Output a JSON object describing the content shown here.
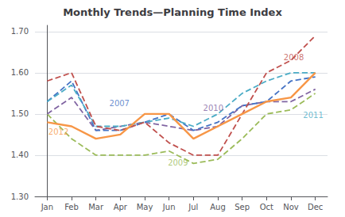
{
  "chart_data": {
    "type": "line",
    "title": "Monthly Trends—Planning Time Index",
    "categories": [
      "Jan",
      "Feb",
      "Mar",
      "Apr",
      "May",
      "Jun",
      "Jul",
      "Aug",
      "Sep",
      "Oct",
      "Nov",
      "Dec"
    ],
    "series": [
      {
        "name": "2009",
        "color": "#9BBB59",
        "line_style": "dashed",
        "values": [
          1.5,
          1.44,
          1.4,
          1.4,
          1.4,
          1.41,
          1.38,
          1.39,
          1.44,
          1.5,
          1.51,
          1.55
        ]
      },
      {
        "name": "2010",
        "color": "#8064A2",
        "line_style": "dashed",
        "values": [
          1.5,
          1.54,
          1.46,
          1.47,
          1.48,
          1.47,
          1.46,
          1.47,
          1.52,
          1.53,
          1.53,
          1.56
        ]
      },
      {
        "name": "2007",
        "color": "#4472C4",
        "line_style": "dashed",
        "values": [
          1.53,
          1.58,
          1.46,
          1.46,
          1.48,
          1.5,
          1.46,
          1.48,
          1.52,
          1.53,
          1.58,
          1.59
        ]
      },
      {
        "name": "2011",
        "color": "#4BACC6",
        "line_style": "dashed",
        "values": [
          1.53,
          1.57,
          1.47,
          1.47,
          1.48,
          1.49,
          1.47,
          1.5,
          1.55,
          1.58,
          1.6,
          1.6
        ]
      },
      {
        "name": "2008",
        "color": "#C0504D",
        "line_style": "dashed",
        "values": [
          1.58,
          1.6,
          1.47,
          1.46,
          1.48,
          1.43,
          1.4,
          1.4,
          1.5,
          1.6,
          1.63,
          1.69
        ]
      },
      {
        "name": "2012",
        "color": "#F79646",
        "line_style": "solid",
        "values": [
          1.48,
          1.47,
          1.44,
          1.45,
          1.5,
          1.5,
          1.44,
          1.47,
          1.5,
          1.53,
          1.54,
          1.6
        ]
      }
    ],
    "annotations": [
      {
        "text": "2007",
        "x": 2.55,
        "y": 1.525,
        "color": "#4472C4"
      },
      {
        "text": "2008",
        "x": 9.7,
        "y": 1.638,
        "color": "#C0504D"
      },
      {
        "text": "2009",
        "x": 4.95,
        "y": 1.381,
        "color": "#9BBB59"
      },
      {
        "text": "2010",
        "x": 6.4,
        "y": 1.515,
        "color": "#8064A2"
      },
      {
        "text": "2011",
        "x": 10.5,
        "y": 1.497,
        "color": "#4BACC6"
      },
      {
        "text": "2012",
        "x": 0.05,
        "y": 1.456,
        "color": "#F79646"
      }
    ],
    "ylim": [
      1.3,
      1.715
    ],
    "yticks": [
      {
        "value": 1.3,
        "label": "1.30"
      },
      {
        "value": 1.4,
        "label": "1.40"
      },
      {
        "value": 1.5,
        "label": "1.50"
      },
      {
        "value": 1.6,
        "label": "1.60"
      },
      {
        "value": 1.7,
        "label": "1.70"
      }
    ],
    "grid": true
  }
}
